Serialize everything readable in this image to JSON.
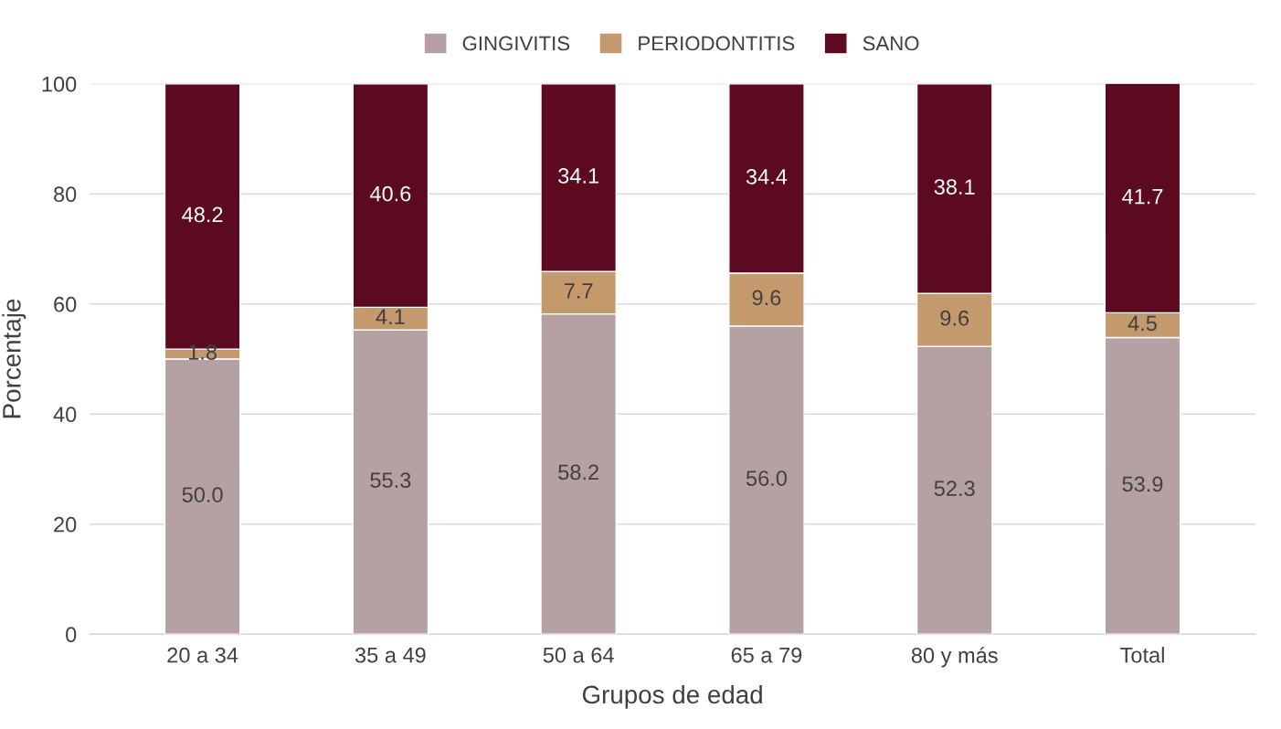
{
  "chart_data": {
    "type": "bar",
    "stacked": true,
    "xlabel": "Grupos de edad",
    "ylabel": "Porcentaje",
    "categories": [
      "20 a 34",
      "35 a 49",
      "50 a 64",
      "65 a 79",
      "80 y más",
      "Total"
    ],
    "series": [
      {
        "name": "GINGIVITIS",
        "color": "#b5a0a4",
        "values": [
          50.0,
          55.3,
          58.2,
          56.0,
          52.3,
          53.9
        ],
        "value_labels": [
          "50.0",
          "55.3",
          "58.2",
          "56.0",
          "52.3",
          "53.9"
        ]
      },
      {
        "name": "PERIODONTITIS",
        "color": "#c49a6c",
        "values": [
          1.8,
          4.1,
          7.7,
          9.6,
          9.6,
          4.5
        ],
        "value_labels": [
          "1.8",
          "4.1",
          "7.7",
          "9.6",
          "9.6",
          "4.5"
        ]
      },
      {
        "name": "SANO",
        "color": "#5c0a20",
        "values": [
          48.2,
          40.6,
          34.1,
          34.4,
          38.1,
          41.7
        ],
        "value_labels": [
          "48.2",
          "40.6",
          "34.1",
          "34.4",
          "38.1",
          "41.7"
        ]
      }
    ],
    "ylim": [
      0,
      100
    ],
    "yticks": [
      0,
      20,
      40,
      60,
      80,
      100
    ],
    "grid": "y",
    "legend": "top"
  }
}
